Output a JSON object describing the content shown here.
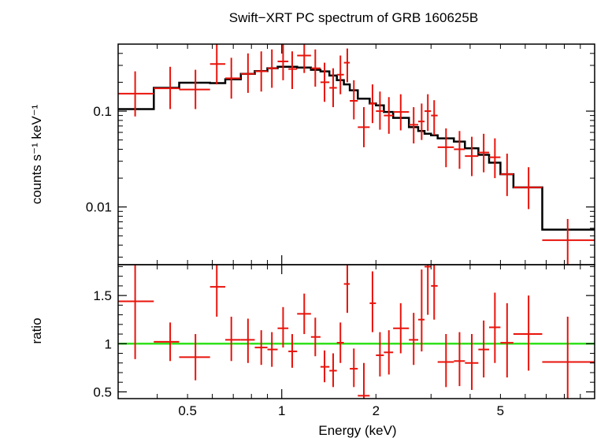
{
  "chart_data": {
    "type": "scatter",
    "title": "Swift−XRT PC spectrum of GRB 160625B",
    "xlabel": "Energy (keV)",
    "x_scale": "log",
    "xlim": [
      0.3,
      10
    ],
    "x_ticks": [
      {
        "value": 0.5,
        "label": "0.5"
      },
      {
        "value": 1,
        "label": "1"
      },
      {
        "value": 2,
        "label": "2"
      },
      {
        "value": 5,
        "label": "5"
      }
    ],
    "colors": {
      "data": "#e8130b",
      "model": "#000000",
      "unity": "#31e01c",
      "frame": "#000000"
    },
    "panels": [
      {
        "id": "spectrum",
        "ylabel": "counts s⁻¹ keV⁻¹",
        "y_scale": "log",
        "ylim": [
          0.0025,
          0.5
        ],
        "y_ticks": [
          {
            "value": 0.1,
            "label": "0.1"
          },
          {
            "value": 0.01,
            "label": "0.01"
          }
        ],
        "data": [
          {
            "x": 0.34,
            "xlo": 0.3,
            "xhi": 0.39,
            "y": 0.152,
            "ylo": 0.088,
            "yhi": 0.26
          },
          {
            "x": 0.44,
            "xlo": 0.39,
            "xhi": 0.47,
            "y": 0.173,
            "ylo": 0.105,
            "yhi": 0.29
          },
          {
            "x": 0.53,
            "xlo": 0.47,
            "xhi": 0.59,
            "y": 0.168,
            "ylo": 0.105,
            "yhi": 0.27
          },
          {
            "x": 0.62,
            "xlo": 0.59,
            "xhi": 0.66,
            "y": 0.31,
            "ylo": 0.19,
            "yhi": 0.5
          },
          {
            "x": 0.69,
            "xlo": 0.66,
            "xhi": 0.74,
            "y": 0.22,
            "ylo": 0.135,
            "yhi": 0.36
          },
          {
            "x": 0.78,
            "xlo": 0.74,
            "xhi": 0.82,
            "y": 0.245,
            "ylo": 0.155,
            "yhi": 0.4
          },
          {
            "x": 0.86,
            "xlo": 0.82,
            "xhi": 0.9,
            "y": 0.26,
            "ylo": 0.16,
            "yhi": 0.42
          },
          {
            "x": 0.93,
            "xlo": 0.9,
            "xhi": 0.97,
            "y": 0.28,
            "ylo": 0.175,
            "yhi": 0.44
          },
          {
            "x": 1.01,
            "xlo": 0.97,
            "xhi": 1.05,
            "y": 0.33,
            "ylo": 0.21,
            "yhi": 0.5
          },
          {
            "x": 1.08,
            "xlo": 1.05,
            "xhi": 1.12,
            "y": 0.275,
            "ylo": 0.17,
            "yhi": 0.42
          },
          {
            "x": 1.18,
            "xlo": 1.12,
            "xhi": 1.24,
            "y": 0.38,
            "ylo": 0.25,
            "yhi": 0.5
          },
          {
            "x": 1.28,
            "xlo": 1.24,
            "xhi": 1.33,
            "y": 0.28,
            "ylo": 0.18,
            "yhi": 0.44
          },
          {
            "x": 1.37,
            "xlo": 1.33,
            "xhi": 1.42,
            "y": 0.2,
            "ylo": 0.125,
            "yhi": 0.32
          },
          {
            "x": 1.46,
            "xlo": 1.42,
            "xhi": 1.5,
            "y": 0.175,
            "ylo": 0.11,
            "yhi": 0.28
          },
          {
            "x": 1.54,
            "xlo": 1.5,
            "xhi": 1.58,
            "y": 0.24,
            "ylo": 0.15,
            "yhi": 0.38
          },
          {
            "x": 1.62,
            "xlo": 1.58,
            "xhi": 1.65,
            "y": 0.32,
            "ylo": 0.2,
            "yhi": 0.45
          },
          {
            "x": 1.7,
            "xlo": 1.65,
            "xhi": 1.75,
            "y": 0.128,
            "ylo": 0.082,
            "yhi": 0.21
          },
          {
            "x": 1.83,
            "xlo": 1.75,
            "xhi": 1.91,
            "y": 0.068,
            "ylo": 0.042,
            "yhi": 0.11
          },
          {
            "x": 1.95,
            "xlo": 1.91,
            "xhi": 2.0,
            "y": 0.12,
            "ylo": 0.075,
            "yhi": 0.19
          },
          {
            "x": 2.06,
            "xlo": 2.0,
            "xhi": 2.12,
            "y": 0.1,
            "ylo": 0.064,
            "yhi": 0.16
          },
          {
            "x": 2.2,
            "xlo": 2.12,
            "xhi": 2.27,
            "y": 0.09,
            "ylo": 0.058,
            "yhi": 0.14
          },
          {
            "x": 2.4,
            "xlo": 2.27,
            "xhi": 2.55,
            "y": 0.098,
            "ylo": 0.063,
            "yhi": 0.15
          },
          {
            "x": 2.64,
            "xlo": 2.55,
            "xhi": 2.73,
            "y": 0.072,
            "ylo": 0.046,
            "yhi": 0.11
          },
          {
            "x": 2.8,
            "xlo": 2.73,
            "xhi": 2.86,
            "y": 0.078,
            "ylo": 0.05,
            "yhi": 0.12
          },
          {
            "x": 2.93,
            "xlo": 2.86,
            "xhi": 3.0,
            "y": 0.1,
            "ylo": 0.062,
            "yhi": 0.15
          },
          {
            "x": 3.07,
            "xlo": 3.0,
            "xhi": 3.15,
            "y": 0.09,
            "ylo": 0.056,
            "yhi": 0.13
          },
          {
            "x": 3.35,
            "xlo": 3.15,
            "xhi": 3.55,
            "y": 0.042,
            "ylo": 0.026,
            "yhi": 0.066
          },
          {
            "x": 3.7,
            "xlo": 3.55,
            "xhi": 3.85,
            "y": 0.04,
            "ylo": 0.025,
            "yhi": 0.062
          },
          {
            "x": 4.05,
            "xlo": 3.85,
            "xhi": 4.25,
            "y": 0.034,
            "ylo": 0.021,
            "yhi": 0.054
          },
          {
            "x": 4.42,
            "xlo": 4.25,
            "xhi": 4.6,
            "y": 0.037,
            "ylo": 0.023,
            "yhi": 0.058
          },
          {
            "x": 4.8,
            "xlo": 4.6,
            "xhi": 5.0,
            "y": 0.033,
            "ylo": 0.02,
            "yhi": 0.052
          },
          {
            "x": 5.25,
            "xlo": 5.0,
            "xhi": 5.5,
            "y": 0.022,
            "ylo": 0.013,
            "yhi": 0.036
          },
          {
            "x": 6.15,
            "xlo": 5.5,
            "xhi": 6.8,
            "y": 0.016,
            "ylo": 0.0095,
            "yhi": 0.026
          },
          {
            "x": 8.2,
            "xlo": 6.8,
            "xhi": 10.0,
            "y": 0.0045,
            "ylo": 0.0025,
            "yhi": 0.0075
          }
        ],
        "model": [
          {
            "x0": 0.3,
            "x1": 0.39,
            "y": 0.105
          },
          {
            "x0": 0.39,
            "x1": 0.47,
            "y": 0.175
          },
          {
            "x0": 0.47,
            "x1": 0.59,
            "y": 0.198
          },
          {
            "x0": 0.59,
            "x1": 0.66,
            "y": 0.196
          },
          {
            "x0": 0.66,
            "x1": 0.74,
            "y": 0.215
          },
          {
            "x0": 0.74,
            "x1": 0.82,
            "y": 0.245
          },
          {
            "x0": 0.82,
            "x1": 0.9,
            "y": 0.262
          },
          {
            "x0": 0.9,
            "x1": 0.97,
            "y": 0.28
          },
          {
            "x0": 0.97,
            "x1": 1.05,
            "y": 0.29
          },
          {
            "x0": 1.05,
            "x1": 1.12,
            "y": 0.29
          },
          {
            "x0": 1.12,
            "x1": 1.24,
            "y": 0.285
          },
          {
            "x0": 1.24,
            "x1": 1.33,
            "y": 0.27
          },
          {
            "x0": 1.33,
            "x1": 1.42,
            "y": 0.26
          },
          {
            "x0": 1.42,
            "x1": 1.5,
            "y": 0.235
          },
          {
            "x0": 1.5,
            "x1": 1.58,
            "y": 0.21
          },
          {
            "x0": 1.58,
            "x1": 1.65,
            "y": 0.19
          },
          {
            "x0": 1.65,
            "x1": 1.75,
            "y": 0.165
          },
          {
            "x0": 1.75,
            "x1": 1.91,
            "y": 0.135
          },
          {
            "x0": 1.91,
            "x1": 2.0,
            "y": 0.12
          },
          {
            "x0": 2.0,
            "x1": 2.12,
            "y": 0.115
          },
          {
            "x0": 2.12,
            "x1": 2.27,
            "y": 0.098
          },
          {
            "x0": 2.27,
            "x1": 2.55,
            "y": 0.085
          },
          {
            "x0": 2.55,
            "x1": 2.73,
            "y": 0.068
          },
          {
            "x0": 2.73,
            "x1": 2.86,
            "y": 0.062
          },
          {
            "x0": 2.86,
            "x1": 3.0,
            "y": 0.058
          },
          {
            "x0": 3.0,
            "x1": 3.15,
            "y": 0.056
          },
          {
            "x0": 3.15,
            "x1": 3.55,
            "y": 0.052
          },
          {
            "x0": 3.55,
            "x1": 3.85,
            "y": 0.048
          },
          {
            "x0": 3.85,
            "x1": 4.25,
            "y": 0.041
          },
          {
            "x0": 4.25,
            "x1": 4.6,
            "y": 0.035
          },
          {
            "x0": 4.6,
            "x1": 5.0,
            "y": 0.029
          },
          {
            "x0": 5.0,
            "x1": 5.5,
            "y": 0.022
          },
          {
            "x0": 5.5,
            "x1": 6.8,
            "y": 0.016
          },
          {
            "x0": 6.8,
            "x1": 10.0,
            "y": 0.0058
          }
        ]
      },
      {
        "id": "ratio",
        "ylabel": "ratio",
        "y_scale": "linear",
        "ylim": [
          0.43,
          1.82
        ],
        "y_ticks": [
          {
            "value": 0.5,
            "label": "0.5"
          },
          {
            "value": 1,
            "label": "1"
          },
          {
            "value": 1.5,
            "label": "1.5"
          }
        ],
        "reference_line": 1.0,
        "data": [
          {
            "x": 0.34,
            "xlo": 0.3,
            "xhi": 0.39,
            "y": 1.44,
            "ylo": 0.84,
            "yhi": 1.82
          },
          {
            "x": 0.44,
            "xlo": 0.39,
            "xhi": 0.47,
            "y": 1.02,
            "ylo": 0.82,
            "yhi": 1.22
          },
          {
            "x": 0.53,
            "xlo": 0.47,
            "xhi": 0.59,
            "y": 0.86,
            "ylo": 0.62,
            "yhi": 1.1
          },
          {
            "x": 0.62,
            "xlo": 0.59,
            "xhi": 0.66,
            "y": 1.59,
            "ylo": 1.28,
            "yhi": 1.82
          },
          {
            "x": 0.69,
            "xlo": 0.66,
            "xhi": 0.74,
            "y": 1.04,
            "ylo": 0.82,
            "yhi": 1.28
          },
          {
            "x": 0.78,
            "xlo": 0.74,
            "xhi": 0.82,
            "y": 1.04,
            "ylo": 0.8,
            "yhi": 1.26
          },
          {
            "x": 0.86,
            "xlo": 0.82,
            "xhi": 0.9,
            "y": 0.96,
            "ylo": 0.78,
            "yhi": 1.14
          },
          {
            "x": 0.93,
            "xlo": 0.9,
            "xhi": 0.97,
            "y": 0.94,
            "ylo": 0.76,
            "yhi": 1.12
          },
          {
            "x": 1.01,
            "xlo": 0.97,
            "xhi": 1.05,
            "y": 1.16,
            "ylo": 0.96,
            "yhi": 1.38
          },
          {
            "x": 1.08,
            "xlo": 1.05,
            "xhi": 1.12,
            "y": 0.92,
            "ylo": 0.75,
            "yhi": 1.1
          },
          {
            "x": 1.18,
            "xlo": 1.12,
            "xhi": 1.24,
            "y": 1.31,
            "ylo": 1.1,
            "yhi": 1.52
          },
          {
            "x": 1.28,
            "xlo": 1.24,
            "xhi": 1.33,
            "y": 1.07,
            "ylo": 0.87,
            "yhi": 1.27
          },
          {
            "x": 1.37,
            "xlo": 1.33,
            "xhi": 1.42,
            "y": 0.76,
            "ylo": 0.6,
            "yhi": 0.93
          },
          {
            "x": 1.46,
            "xlo": 1.42,
            "xhi": 1.5,
            "y": 0.72,
            "ylo": 0.55,
            "yhi": 0.9
          },
          {
            "x": 1.54,
            "xlo": 1.5,
            "xhi": 1.58,
            "y": 1.01,
            "ylo": 0.8,
            "yhi": 1.22
          },
          {
            "x": 1.62,
            "xlo": 1.58,
            "xhi": 1.65,
            "y": 1.62,
            "ylo": 1.32,
            "yhi": 1.82
          },
          {
            "x": 1.7,
            "xlo": 1.65,
            "xhi": 1.75,
            "y": 0.74,
            "ylo": 0.55,
            "yhi": 0.95
          },
          {
            "x": 1.83,
            "xlo": 1.75,
            "xhi": 1.91,
            "y": 0.46,
            "ylo": 0.43,
            "yhi": 0.8
          },
          {
            "x": 1.95,
            "xlo": 1.91,
            "xhi": 2.0,
            "y": 1.42,
            "ylo": 1.12,
            "yhi": 1.75
          },
          {
            "x": 2.06,
            "xlo": 2.0,
            "xhi": 2.12,
            "y": 0.88,
            "ylo": 0.66,
            "yhi": 1.12
          },
          {
            "x": 2.2,
            "xlo": 2.12,
            "xhi": 2.27,
            "y": 0.91,
            "ylo": 0.68,
            "yhi": 1.14
          },
          {
            "x": 2.4,
            "xlo": 2.27,
            "xhi": 2.55,
            "y": 1.16,
            "ylo": 0.9,
            "yhi": 1.42
          },
          {
            "x": 2.64,
            "xlo": 2.55,
            "xhi": 2.73,
            "y": 1.04,
            "ylo": 0.78,
            "yhi": 1.32
          },
          {
            "x": 2.8,
            "xlo": 2.73,
            "xhi": 2.86,
            "y": 1.25,
            "ylo": 0.92,
            "yhi": 1.77
          },
          {
            "x": 2.93,
            "xlo": 2.86,
            "xhi": 3.0,
            "y": 1.8,
            "ylo": 1.3,
            "yhi": 1.82
          },
          {
            "x": 3.07,
            "xlo": 3.0,
            "xhi": 3.15,
            "y": 1.6,
            "ylo": 1.25,
            "yhi": 1.82
          },
          {
            "x": 3.35,
            "xlo": 3.15,
            "xhi": 3.55,
            "y": 0.81,
            "ylo": 0.55,
            "yhi": 1.1
          },
          {
            "x": 3.7,
            "xlo": 3.55,
            "xhi": 3.85,
            "y": 0.82,
            "ylo": 0.56,
            "yhi": 1.12
          },
          {
            "x": 4.05,
            "xlo": 3.85,
            "xhi": 4.25,
            "y": 0.8,
            "ylo": 0.52,
            "yhi": 1.1
          },
          {
            "x": 4.42,
            "xlo": 4.25,
            "xhi": 4.6,
            "y": 0.94,
            "ylo": 0.65,
            "yhi": 1.24
          },
          {
            "x": 4.8,
            "xlo": 4.6,
            "xhi": 5.0,
            "y": 1.17,
            "ylo": 0.8,
            "yhi": 1.53
          },
          {
            "x": 5.25,
            "xlo": 5.0,
            "xhi": 5.5,
            "y": 1.01,
            "ylo": 0.65,
            "yhi": 1.42
          },
          {
            "x": 6.15,
            "xlo": 5.5,
            "xhi": 6.8,
            "y": 1.1,
            "ylo": 0.72,
            "yhi": 1.5
          },
          {
            "x": 8.2,
            "xlo": 6.8,
            "xhi": 10.0,
            "y": 0.81,
            "ylo": 0.43,
            "yhi": 1.28
          }
        ]
      }
    ]
  }
}
